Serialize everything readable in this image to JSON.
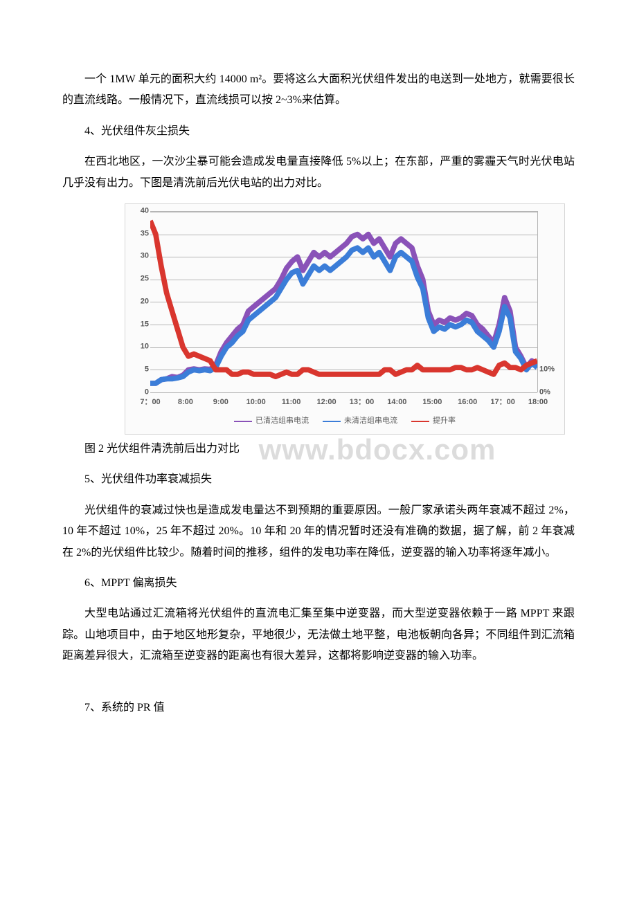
{
  "p1": "一个 1MW 单元的面积大约 14000 m²。要将这么大面积光伏组件发出的电送到一处地方，就需要很长的直流线路。一般情况下，直流线损可以按 2~3%来估算。",
  "h4": "4、光伏组件灰尘损失",
  "p2": "在西北地区，一次沙尘暴可能会造成发电量直接降低 5%以上；在东部，严重的雾霾天气时光伏电站几乎没有出力。下图是清洗前后光伏电站的出力对比。",
  "caption": "图 2 光伏组件清洗前后出力对比",
  "h5": "5、光伏组件功率衰减损失",
  "p3": "光伏组件的衰减过快也是造成发电量达不到预期的重要原因。一般厂家承诺头两年衰减不超过 2%，10 年不超过 10%，25 年不超过 20%。10 年和 20 年的情况暂时还没有准确的数据，据了解，前 2 年衰减在 2%的光伏组件比较少。随着时间的推移，组件的发电功率在降低，逆变器的输入功率将逐年减小。",
  "h6": "6、MPPT 偏离损失",
  "p4": "大型电站通过汇流箱将光伏组件的直流电汇集至集中逆变器，而大型逆变器依赖于一路 MPPT 来跟踪。山地项目中，由于地区地形复杂，平地很少，无法做土地平整，电池板朝向各异；不同组件到汇流箱距离差异很大，汇流箱至逆变器的距离也有很大差异，这都将影响逆变器的输入功率。",
  "h7": "7、系统的 PR 值",
  "watermark": "www.bdocx.com",
  "chart": {
    "type": "line",
    "background_color": "#fbfbfb",
    "grid_color": "#b5b5b5",
    "label_fontsize": 11,
    "label_color": "#595959",
    "x_labels": [
      "7：00",
      "8:00",
      "9:00",
      "10:00",
      "11:00",
      "12:00",
      "13：00",
      "14:00",
      "15:00",
      "16:00",
      "17：00",
      "18:00"
    ],
    "y_ticks": [
      0,
      5,
      10,
      15,
      20,
      25,
      30,
      35,
      40
    ],
    "y2_ticks": [
      "0%",
      "10%"
    ],
    "ylim": [
      0,
      40
    ],
    "series": [
      {
        "name": "已清洁组串电流",
        "color": "#8a52b8",
        "width": 2.2,
        "values": [
          2,
          2,
          2.8,
          3,
          3.5,
          3.3,
          3.8,
          5,
          5.2,
          5,
          5.2,
          5.1,
          6,
          9,
          11,
          12.5,
          14,
          15,
          18,
          19,
          20,
          21,
          22,
          23,
          25,
          27.5,
          29,
          30,
          27,
          29,
          31,
          30,
          31,
          30,
          31,
          32,
          33,
          34.5,
          35,
          34,
          35,
          33,
          34,
          32,
          30,
          33,
          34,
          33,
          32,
          28,
          25,
          18,
          15,
          16,
          15.5,
          16.5,
          16,
          16.5,
          17.5,
          17,
          15,
          14,
          12.5,
          11,
          15,
          21,
          18,
          10,
          8,
          5.5,
          7,
          6
        ]
      },
      {
        "name": "未清洁组串电流",
        "color": "#3b7dd8",
        "width": 2.2,
        "values": [
          2,
          2,
          2.8,
          3,
          3,
          3.2,
          3.5,
          4.5,
          5,
          4.8,
          5,
          4.8,
          5.5,
          8,
          10,
          11,
          12.5,
          13.5,
          16,
          17,
          18,
          19,
          20,
          21,
          23,
          25,
          26.5,
          27,
          24,
          26,
          28,
          27,
          28,
          27,
          28,
          29,
          30,
          31.5,
          32,
          31,
          32,
          30,
          31,
          29,
          27,
          30,
          31,
          30,
          29,
          25.5,
          23,
          16.5,
          13.5,
          14.5,
          14,
          15,
          14.5,
          15,
          16,
          15.5,
          13.5,
          12.5,
          11.5,
          10,
          13.5,
          19,
          16.5,
          9,
          7.5,
          5,
          6.5,
          5.5
        ]
      },
      {
        "name": "提升率",
        "color": "#d9362e",
        "width": 2.2,
        "values": [
          38,
          35,
          28,
          22,
          18,
          14,
          10,
          8,
          8.5,
          8,
          7.5,
          7,
          5,
          5,
          5,
          4,
          4,
          4.5,
          4.5,
          4,
          4,
          4,
          4,
          3.5,
          4,
          4.5,
          4,
          4,
          5,
          5,
          4.5,
          4,
          4,
          4,
          4,
          4,
          4,
          4,
          4,
          4,
          4,
          4,
          4,
          5,
          5,
          4,
          4.5,
          5,
          5,
          6,
          5,
          5,
          5,
          5,
          5,
          5,
          5.5,
          5.5,
          5,
          5,
          5.5,
          5,
          4.5,
          4,
          6,
          6.5,
          5.5,
          5.5,
          5,
          6,
          6.5,
          7
        ]
      }
    ],
    "legend": [
      "已清洁组串电流",
      "未清洁组串电流",
      "提升率"
    ],
    "legend_colors": [
      "#8a52b8",
      "#3b7dd8",
      "#d9362e"
    ]
  }
}
